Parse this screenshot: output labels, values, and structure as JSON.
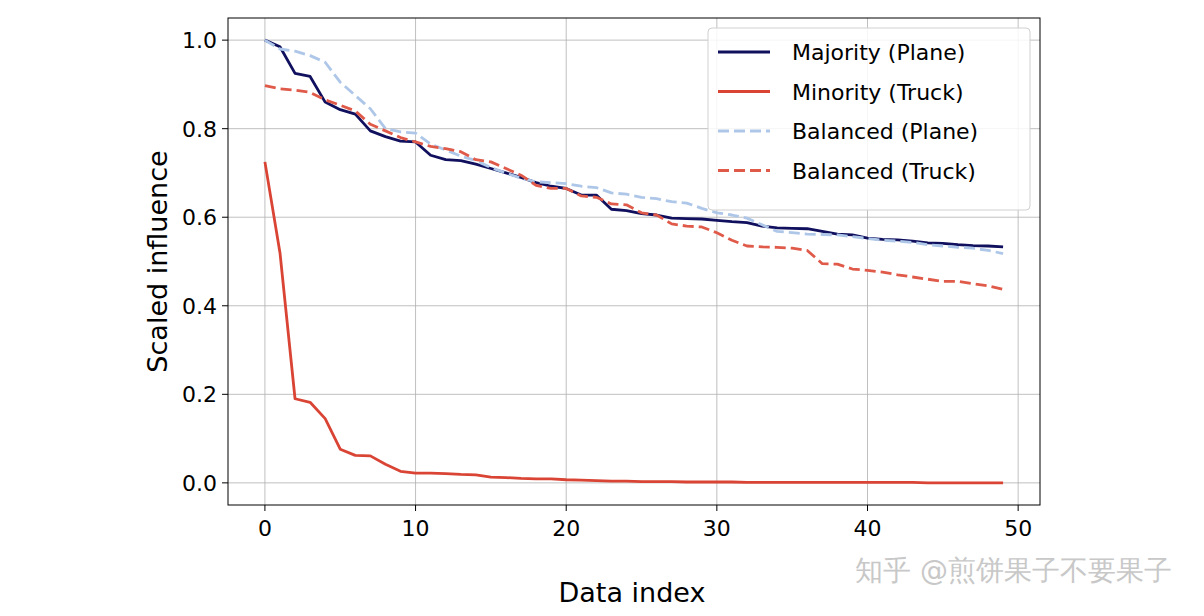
{
  "chart_data": {
    "type": "line",
    "x_label": "Data index",
    "y_label": "Scaled influence",
    "annotations": [
      "知乎 @煎饼果子不要果子"
    ],
    "x": [
      0,
      1,
      2,
      3,
      4,
      5,
      6,
      7,
      8,
      9,
      10,
      11,
      12,
      13,
      14,
      15,
      16,
      17,
      18,
      19,
      20,
      21,
      22,
      23,
      24,
      25,
      26,
      27,
      28,
      29,
      30,
      31,
      32,
      33,
      34,
      35,
      36,
      37,
      38,
      39,
      40,
      41,
      42,
      43,
      44,
      45,
      46,
      47,
      48,
      49
    ],
    "series": [
      {
        "name": "Majority (Plane)",
        "color": "#10105e",
        "line_style": "solid",
        "values": [
          1.0,
          0.985,
          0.925,
          0.918,
          0.86,
          0.843,
          0.833,
          0.795,
          0.782,
          0.772,
          0.77,
          0.74,
          0.73,
          0.728,
          0.72,
          0.71,
          0.7,
          0.69,
          0.678,
          0.67,
          0.665,
          0.65,
          0.65,
          0.618,
          0.615,
          0.608,
          0.605,
          0.598,
          0.597,
          0.596,
          0.593,
          0.59,
          0.588,
          0.58,
          0.576,
          0.575,
          0.574,
          0.568,
          0.562,
          0.56,
          0.553,
          0.55,
          0.549,
          0.546,
          0.542,
          0.541,
          0.538,
          0.536,
          0.535,
          0.533
        ]
      },
      {
        "name": "Minority (Truck)",
        "color": "#d94434",
        "line_style": "solid",
        "values": [
          0.725,
          0.52,
          0.19,
          0.182,
          0.145,
          0.076,
          0.062,
          0.061,
          0.042,
          0.026,
          0.022,
          0.022,
          0.021,
          0.019,
          0.018,
          0.013,
          0.012,
          0.01,
          0.009,
          0.009,
          0.007,
          0.006,
          0.005,
          0.004,
          0.004,
          0.003,
          0.003,
          0.003,
          0.002,
          0.002,
          0.002,
          0.002,
          0.001,
          0.001,
          0.001,
          0.001,
          0.001,
          0.001,
          0.001,
          0.001,
          0.001,
          0.001,
          0.001,
          0.001,
          0,
          0,
          0,
          0,
          0,
          0
        ]
      },
      {
        "name": "Balanced (Plane)",
        "color": "#aec7e8",
        "line_style": "dashed",
        "values": [
          1.0,
          0.98,
          0.975,
          0.965,
          0.95,
          0.905,
          0.875,
          0.845,
          0.8,
          0.793,
          0.79,
          0.765,
          0.752,
          0.738,
          0.728,
          0.712,
          0.7,
          0.688,
          0.68,
          0.678,
          0.676,
          0.67,
          0.667,
          0.655,
          0.652,
          0.645,
          0.642,
          0.635,
          0.632,
          0.62,
          0.61,
          0.605,
          0.598,
          0.583,
          0.568,
          0.565,
          0.562,
          0.561,
          0.56,
          0.556,
          0.552,
          0.548,
          0.546,
          0.543,
          0.538,
          0.535,
          0.532,
          0.53,
          0.525,
          0.518
        ]
      },
      {
        "name": "Balanced (Truck)",
        "color": "#e05a4a",
        "line_style": "dashed",
        "values": [
          0.897,
          0.89,
          0.887,
          0.882,
          0.865,
          0.853,
          0.84,
          0.81,
          0.795,
          0.78,
          0.77,
          0.76,
          0.755,
          0.748,
          0.73,
          0.725,
          0.71,
          0.695,
          0.672,
          0.665,
          0.665,
          0.648,
          0.645,
          0.63,
          0.628,
          0.61,
          0.605,
          0.585,
          0.58,
          0.578,
          0.565,
          0.548,
          0.535,
          0.533,
          0.532,
          0.53,
          0.525,
          0.495,
          0.494,
          0.483,
          0.48,
          0.476,
          0.47,
          0.465,
          0.46,
          0.455,
          0.455,
          0.45,
          0.445,
          0.437
        ]
      }
    ],
    "xlim": [
      -2.45,
      51.45
    ],
    "ylim": [
      -0.05,
      1.05
    ],
    "xticks": [
      0,
      10,
      20,
      30,
      40,
      50
    ],
    "yticks": [
      {
        "value": 0.0,
        "label": "0.0"
      },
      0.2,
      0.4,
      0.6,
      0.8,
      {
        "value": 1.0,
        "label": "1.0"
      }
    ],
    "grid": true,
    "legend": "upper right"
  }
}
